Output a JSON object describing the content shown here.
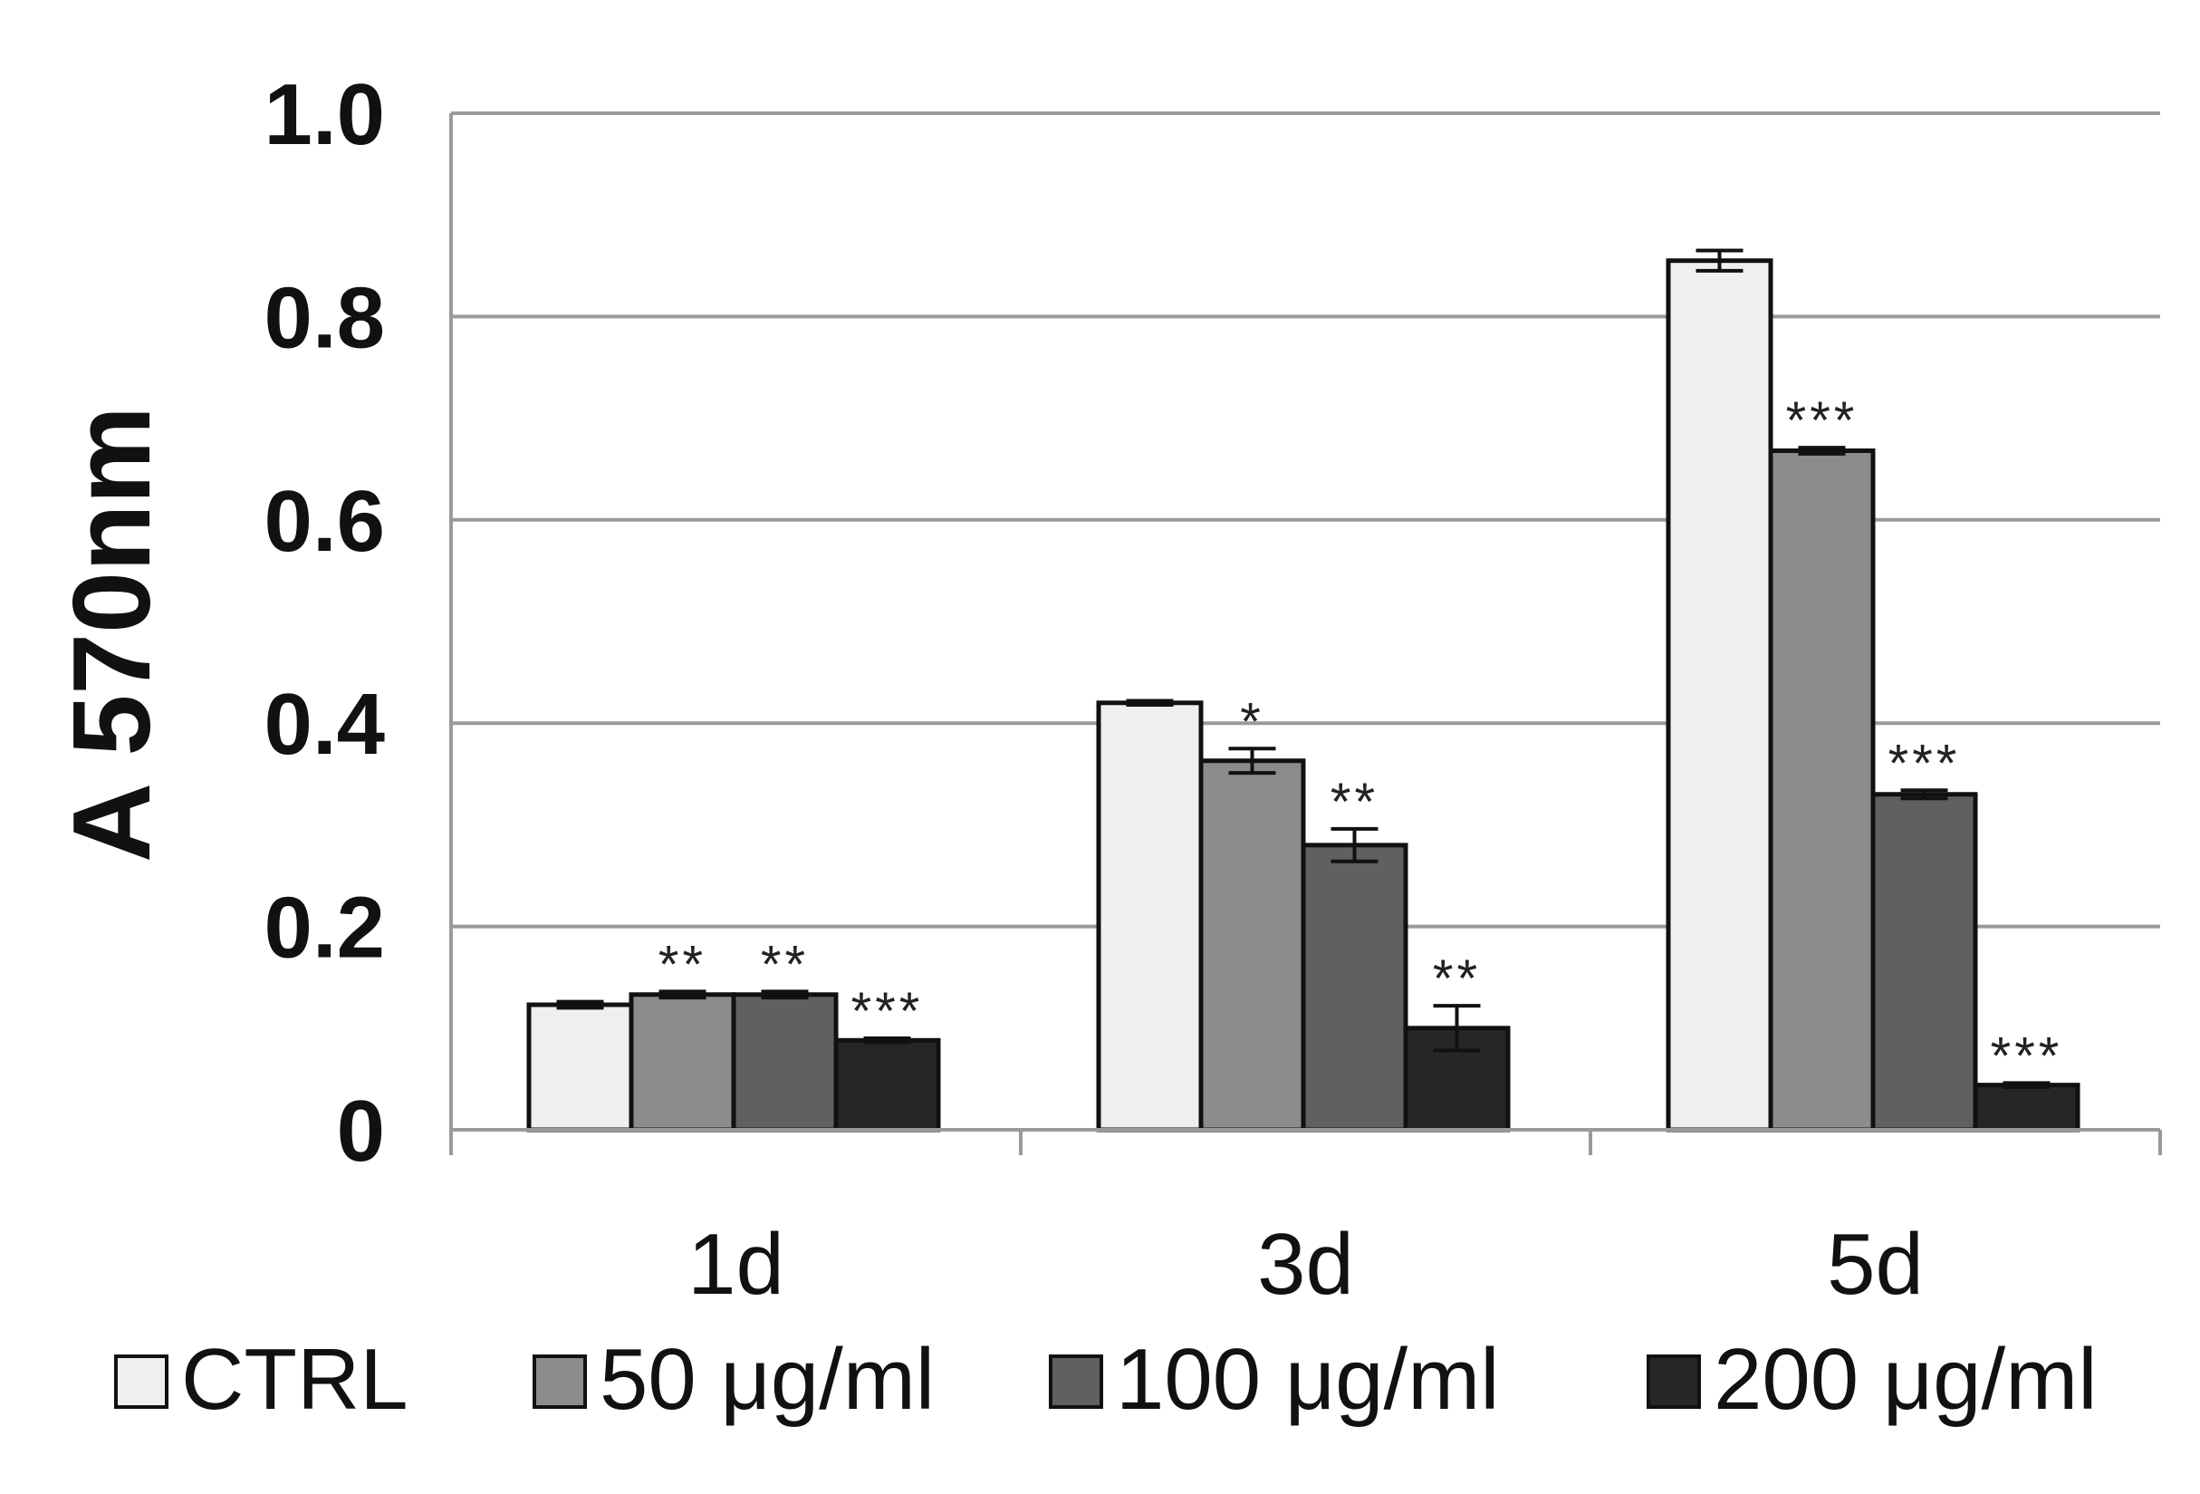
{
  "chart_data": {
    "type": "bar",
    "title": "",
    "xlabel": "",
    "ylabel": "A 570nm",
    "ylim": [
      0,
      1.0
    ],
    "yticks": [
      {
        "value": 0,
        "label": "0"
      },
      {
        "value": 0.2,
        "label": "0.2"
      },
      {
        "value": 0.4,
        "label": "0.4"
      },
      {
        "value": 0.6,
        "label": "0.6"
      },
      {
        "value": 0.8,
        "label": "0.8"
      },
      {
        "value": 1.0,
        "label": "1.0"
      }
    ],
    "grid": true,
    "categories": [
      "1d",
      "3d",
      "5d"
    ],
    "legend_position": "bottom",
    "series": [
      {
        "name": "CTRL",
        "color": "#efefef",
        "values": [
          0.123,
          0.42,
          0.855
        ],
        "errors": [
          0.003,
          0.002,
          0.01
        ],
        "significance": [
          "",
          "",
          ""
        ]
      },
      {
        "name": "50 μg/ml",
        "color": "#8c8c8c",
        "values": [
          0.133,
          0.363,
          0.668
        ],
        "errors": [
          0.003,
          0.012,
          0.003
        ],
        "significance": [
          "**",
          "*",
          "***"
        ]
      },
      {
        "name": "100 μg/ml",
        "color": "#606060",
        "values": [
          0.133,
          0.28,
          0.33
        ],
        "errors": [
          0.003,
          0.016,
          0.004
        ],
        "significance": [
          "**",
          "**",
          "***"
        ]
      },
      {
        "name": "200 μg/ml",
        "color": "#262626",
        "values": [
          0.088,
          0.1,
          0.044
        ],
        "errors": [
          0.002,
          0.022,
          0.002
        ],
        "significance": [
          "***",
          "**",
          "***"
        ]
      }
    ]
  }
}
